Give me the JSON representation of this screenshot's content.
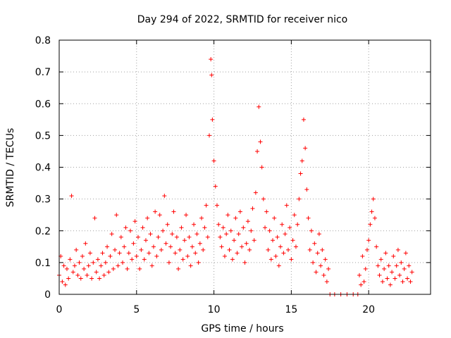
{
  "chart_data": {
    "type": "scatter",
    "title": "Day 294 of 2022, SRMTID for receiver nico",
    "xlabel": "GPS time / hours",
    "ylabel": "SRMTID / TECUs",
    "xlim": [
      0,
      24
    ],
    "ylim": [
      0,
      0.8
    ],
    "xticks": [
      0,
      5,
      10,
      15,
      20
    ],
    "xtick_labels": [
      "0",
      "5",
      "10",
      "15",
      "20"
    ],
    "yticks": [
      0,
      0.1,
      0.2,
      0.3,
      0.4,
      0.5,
      0.6,
      0.7,
      0.8
    ],
    "ytick_labels": [
      "0",
      "0.1",
      "0.2",
      "0.3",
      "0.4",
      "0.5",
      "0.6",
      "0.7",
      "0.8"
    ],
    "grid": true,
    "marker": "+",
    "series": [
      {
        "name": "SRMTID",
        "color": "#ff0000",
        "points": [
          [
            0.0,
            0.06
          ],
          [
            0.1,
            0.12
          ],
          [
            0.2,
            0.04
          ],
          [
            0.3,
            0.09
          ],
          [
            0.4,
            0.03
          ],
          [
            0.5,
            0.08
          ],
          [
            0.6,
            0.05
          ],
          [
            0.7,
            0.11
          ],
          [
            0.8,
            0.31
          ],
          [
            0.9,
            0.07
          ],
          [
            1.0,
            0.09
          ],
          [
            1.1,
            0.14
          ],
          [
            1.2,
            0.06
          ],
          [
            1.3,
            0.1
          ],
          [
            1.4,
            0.05
          ],
          [
            1.5,
            0.12
          ],
          [
            1.6,
            0.08
          ],
          [
            1.7,
            0.16
          ],
          [
            1.8,
            0.06
          ],
          [
            1.9,
            0.09
          ],
          [
            2.0,
            0.13
          ],
          [
            2.1,
            0.05
          ],
          [
            2.2,
            0.1
          ],
          [
            2.3,
            0.24
          ],
          [
            2.4,
            0.07
          ],
          [
            2.5,
            0.11
          ],
          [
            2.6,
            0.05
          ],
          [
            2.7,
            0.09
          ],
          [
            2.8,
            0.13
          ],
          [
            2.9,
            0.06
          ],
          [
            3.0,
            0.1
          ],
          [
            3.1,
            0.15
          ],
          [
            3.2,
            0.07
          ],
          [
            3.3,
            0.12
          ],
          [
            3.4,
            0.19
          ],
          [
            3.5,
            0.08
          ],
          [
            3.6,
            0.14
          ],
          [
            3.7,
            0.25
          ],
          [
            3.8,
            0.09
          ],
          [
            3.9,
            0.13
          ],
          [
            4.0,
            0.18
          ],
          [
            4.1,
            0.1
          ],
          [
            4.2,
            0.15
          ],
          [
            4.3,
            0.21
          ],
          [
            4.4,
            0.08
          ],
          [
            4.5,
            0.13
          ],
          [
            4.6,
            0.2
          ],
          [
            4.7,
            0.11
          ],
          [
            4.8,
            0.16
          ],
          [
            4.9,
            0.23
          ],
          [
            5.0,
            0.12
          ],
          [
            5.1,
            0.18
          ],
          [
            5.2,
            0.08
          ],
          [
            5.3,
            0.14
          ],
          [
            5.4,
            0.21
          ],
          [
            5.5,
            0.11
          ],
          [
            5.6,
            0.17
          ],
          [
            5.7,
            0.24
          ],
          [
            5.8,
            0.13
          ],
          [
            5.9,
            0.19
          ],
          [
            6.0,
            0.09
          ],
          [
            6.1,
            0.15
          ],
          [
            6.2,
            0.26
          ],
          [
            6.3,
            0.12
          ],
          [
            6.4,
            0.18
          ],
          [
            6.5,
            0.25
          ],
          [
            6.6,
            0.14
          ],
          [
            6.7,
            0.2
          ],
          [
            6.8,
            0.31
          ],
          [
            6.9,
            0.16
          ],
          [
            7.0,
            0.22
          ],
          [
            7.1,
            0.1
          ],
          [
            7.2,
            0.15
          ],
          [
            7.3,
            0.19
          ],
          [
            7.4,
            0.26
          ],
          [
            7.5,
            0.13
          ],
          [
            7.6,
            0.18
          ],
          [
            7.7,
            0.08
          ],
          [
            7.8,
            0.14
          ],
          [
            7.9,
            0.21
          ],
          [
            8.0,
            0.11
          ],
          [
            8.1,
            0.17
          ],
          [
            8.2,
            0.25
          ],
          [
            8.3,
            0.12
          ],
          [
            8.4,
            0.18
          ],
          [
            8.5,
            0.09
          ],
          [
            8.6,
            0.15
          ],
          [
            8.7,
            0.22
          ],
          [
            8.8,
            0.13
          ],
          [
            8.9,
            0.19
          ],
          [
            9.0,
            0.1
          ],
          [
            9.1,
            0.16
          ],
          [
            9.2,
            0.24
          ],
          [
            9.3,
            0.14
          ],
          [
            9.4,
            0.21
          ],
          [
            9.5,
            0.28
          ],
          [
            9.6,
            0.18
          ],
          [
            9.7,
            0.5
          ],
          [
            9.8,
            0.74
          ],
          [
            9.85,
            0.69
          ],
          [
            9.9,
            0.55
          ],
          [
            10.0,
            0.42
          ],
          [
            10.1,
            0.34
          ],
          [
            10.2,
            0.28
          ],
          [
            10.3,
            0.22
          ],
          [
            10.4,
            0.18
          ],
          [
            10.5,
            0.15
          ],
          [
            10.6,
            0.21
          ],
          [
            10.7,
            0.12
          ],
          [
            10.8,
            0.19
          ],
          [
            10.9,
            0.25
          ],
          [
            11.0,
            0.14
          ],
          [
            11.1,
            0.2
          ],
          [
            11.2,
            0.11
          ],
          [
            11.3,
            0.17
          ],
          [
            11.4,
            0.24
          ],
          [
            11.5,
            0.13
          ],
          [
            11.6,
            0.19
          ],
          [
            11.7,
            0.26
          ],
          [
            11.8,
            0.15
          ],
          [
            11.9,
            0.21
          ],
          [
            12.0,
            0.1
          ],
          [
            12.1,
            0.16
          ],
          [
            12.2,
            0.23
          ],
          [
            12.3,
            0.14
          ],
          [
            12.4,
            0.2
          ],
          [
            12.5,
            0.27
          ],
          [
            12.6,
            0.17
          ],
          [
            12.7,
            0.32
          ],
          [
            12.8,
            0.45
          ],
          [
            12.9,
            0.59
          ],
          [
            13.0,
            0.48
          ],
          [
            13.1,
            0.4
          ],
          [
            13.2,
            0.3
          ],
          [
            13.3,
            0.21
          ],
          [
            13.4,
            0.26
          ],
          [
            13.5,
            0.14
          ],
          [
            13.6,
            0.2
          ],
          [
            13.7,
            0.11
          ],
          [
            13.8,
            0.17
          ],
          [
            13.9,
            0.24
          ],
          [
            14.0,
            0.12
          ],
          [
            14.1,
            0.18
          ],
          [
            14.2,
            0.09
          ],
          [
            14.3,
            0.15
          ],
          [
            14.4,
            0.22
          ],
          [
            14.5,
            0.13
          ],
          [
            14.6,
            0.19
          ],
          [
            14.7,
            0.28
          ],
          [
            14.8,
            0.14
          ],
          [
            14.9,
            0.21
          ],
          [
            15.0,
            0.11
          ],
          [
            15.1,
            0.17
          ],
          [
            15.2,
            0.25
          ],
          [
            15.3,
            0.15
          ],
          [
            15.4,
            0.22
          ],
          [
            15.5,
            0.3
          ],
          [
            15.6,
            0.38
          ],
          [
            15.7,
            0.42
          ],
          [
            15.8,
            0.55
          ],
          [
            15.9,
            0.46
          ],
          [
            16.0,
            0.33
          ],
          [
            16.1,
            0.24
          ],
          [
            16.2,
            0.14
          ],
          [
            16.3,
            0.2
          ],
          [
            16.4,
            0.1
          ],
          [
            16.5,
            0.16
          ],
          [
            16.6,
            0.07
          ],
          [
            16.7,
            0.13
          ],
          [
            16.8,
            0.19
          ],
          [
            16.9,
            0.09
          ],
          [
            17.0,
            0.14
          ],
          [
            17.1,
            0.06
          ],
          [
            17.2,
            0.11
          ],
          [
            17.3,
            0.04
          ],
          [
            17.4,
            0.08
          ],
          [
            17.5,
            0.0
          ],
          [
            17.8,
            0.0
          ],
          [
            18.2,
            0.0
          ],
          [
            18.6,
            0.0
          ],
          [
            19.0,
            0.0
          ],
          [
            19.3,
            0.0
          ],
          [
            19.4,
            0.06
          ],
          [
            19.5,
            0.03
          ],
          [
            19.6,
            0.12
          ],
          [
            19.7,
            0.04
          ],
          [
            19.8,
            0.08
          ],
          [
            19.9,
            0.14
          ],
          [
            20.0,
            0.17
          ],
          [
            20.1,
            0.22
          ],
          [
            20.2,
            0.26
          ],
          [
            20.3,
            0.3
          ],
          [
            20.4,
            0.24
          ],
          [
            20.5,
            0.15
          ],
          [
            20.6,
            0.09
          ],
          [
            20.7,
            0.06
          ],
          [
            20.8,
            0.11
          ],
          [
            20.9,
            0.04
          ],
          [
            21.0,
            0.08
          ],
          [
            21.1,
            0.13
          ],
          [
            21.2,
            0.05
          ],
          [
            21.3,
            0.09
          ],
          [
            21.4,
            0.03
          ],
          [
            21.5,
            0.07
          ],
          [
            21.6,
            0.12
          ],
          [
            21.7,
            0.05
          ],
          [
            21.8,
            0.09
          ],
          [
            21.9,
            0.14
          ],
          [
            22.0,
            0.06
          ],
          [
            22.1,
            0.1
          ],
          [
            22.2,
            0.04
          ],
          [
            22.3,
            0.08
          ],
          [
            22.4,
            0.13
          ],
          [
            22.5,
            0.05
          ],
          [
            22.6,
            0.09
          ],
          [
            22.7,
            0.04
          ],
          [
            22.8,
            0.07
          ]
        ]
      }
    ]
  }
}
